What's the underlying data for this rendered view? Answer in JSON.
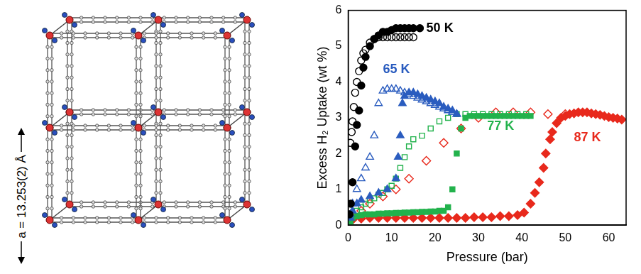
{
  "structure": {
    "label": "a = 13.253(2) Å"
  },
  "chart_data": {
    "type": "scatter",
    "x_label": "Pressure (bar)",
    "y_label": "Excess H₂ Uptake (wt %)",
    "xlim": [
      0,
      64
    ],
    "xticks": [
      0,
      10,
      20,
      30,
      40,
      50,
      60
    ],
    "ylim": [
      0,
      6
    ],
    "yticks": [
      0,
      1,
      2,
      3,
      4,
      5,
      6
    ],
    "grid": false,
    "series": [
      {
        "name": "50 K",
        "color": "#000000",
        "marker": "circle",
        "x": [
          0.3,
          0.6,
          1,
          1.6,
          2,
          2.5,
          3,
          3.5,
          4,
          5,
          6,
          7,
          8,
          9,
          10,
          11,
          12,
          13,
          14,
          15,
          16.5
        ],
        "values": [
          0.3,
          0.6,
          1.2,
          2.2,
          2.8,
          3.2,
          3.9,
          4.4,
          4.7,
          5.0,
          5.2,
          5.3,
          5.4,
          5.4,
          5.45,
          5.5,
          5.5,
          5.5,
          5.5,
          5.5,
          5.5
        ]
      },
      {
        "name": "50 K",
        "color": "#000000",
        "marker": "circle_open",
        "x": [
          0.5,
          0.8,
          1,
          1.3,
          1.6,
          2,
          2.5,
          3,
          3.5,
          4,
          5,
          6,
          7,
          8,
          9,
          10,
          11,
          12,
          13,
          14,
          15
        ],
        "values": [
          2.3,
          2.6,
          2.9,
          3.3,
          3.7,
          4.0,
          4.3,
          4.6,
          4.8,
          4.9,
          5.1,
          5.2,
          5.25,
          5.25,
          5.25,
          5.25,
          5.25,
          5.25,
          5.25,
          5.25,
          5.25
        ]
      },
      {
        "name": "65 K",
        "color": "#2a5cbf",
        "marker": "triangle",
        "x": [
          0.5,
          1,
          2,
          3,
          5,
          7,
          9,
          11,
          11.5,
          12,
          12.5,
          13,
          14,
          15,
          16,
          17,
          18,
          19,
          20,
          21,
          22,
          23,
          24,
          25
        ],
        "values": [
          0.2,
          0.4,
          0.6,
          0.7,
          0.8,
          0.9,
          1.0,
          1.3,
          1.9,
          2.5,
          3.4,
          3.6,
          3.7,
          3.7,
          3.65,
          3.6,
          3.55,
          3.5,
          3.45,
          3.4,
          3.3,
          3.25,
          3.2,
          3.1
        ]
      },
      {
        "name": "65 K",
        "color": "#2a5cbf",
        "marker": "triangle_open",
        "x": [
          0.5,
          1,
          2,
          3,
          4,
          5,
          6,
          7,
          8,
          9,
          10,
          11,
          12,
          13,
          14,
          15,
          16,
          17,
          18,
          19,
          20,
          21,
          22,
          23,
          24,
          25
        ],
        "values": [
          0.3,
          0.6,
          1.0,
          1.3,
          1.6,
          1.9,
          2.5,
          3.4,
          3.75,
          3.8,
          3.8,
          3.8,
          3.75,
          3.7,
          3.65,
          3.6,
          3.55,
          3.5,
          3.45,
          3.4,
          3.35,
          3.3,
          3.25,
          3.2,
          3.15,
          3.1
        ]
      },
      {
        "name": "77 K",
        "color": "#22b24c",
        "marker": "square",
        "x": [
          0.5,
          1,
          2,
          3,
          4,
          5,
          6,
          7,
          8,
          9,
          10,
          11,
          12,
          13,
          14,
          15,
          16,
          17,
          18,
          19,
          20,
          21,
          22,
          23,
          24,
          25,
          26,
          27,
          28,
          29,
          30,
          31,
          32,
          33,
          34,
          35,
          36,
          37,
          38,
          39,
          40,
          41,
          42
        ],
        "values": [
          0.1,
          0.2,
          0.25,
          0.28,
          0.3,
          0.3,
          0.3,
          0.32,
          0.32,
          0.33,
          0.33,
          0.34,
          0.34,
          0.35,
          0.35,
          0.36,
          0.36,
          0.37,
          0.37,
          0.38,
          0.38,
          0.4,
          0.4,
          0.5,
          1.0,
          2.0,
          2.7,
          3.0,
          3.05,
          3.05,
          3.05,
          3.05,
          3.05,
          3.05,
          3.05,
          3.05,
          3.05,
          3.05,
          3.05,
          3.05,
          3.05,
          3.05,
          3.05
        ]
      },
      {
        "name": "77 K",
        "color": "#22b24c",
        "marker": "square_open",
        "x": [
          0.5,
          1,
          2,
          3,
          4,
          5,
          6,
          7,
          8,
          9,
          10,
          11,
          12,
          13,
          14,
          15,
          17,
          19,
          21,
          23,
          25,
          27,
          29,
          31,
          33,
          35,
          37,
          39,
          41
        ],
        "values": [
          0.2,
          0.3,
          0.4,
          0.5,
          0.6,
          0.7,
          0.75,
          0.85,
          0.9,
          1.0,
          1.1,
          1.3,
          1.6,
          1.9,
          2.2,
          2.4,
          2.5,
          2.7,
          2.9,
          3.0,
          3.1,
          3.1,
          3.1,
          3.1,
          3.1,
          3.1,
          3.1,
          3.1,
          3.1
        ]
      },
      {
        "name": "87 K",
        "color": "#e8291c",
        "marker": "diamond",
        "x": [
          1,
          3,
          5,
          7,
          9,
          11,
          13,
          15,
          17,
          19,
          21,
          23,
          25,
          27,
          29,
          31,
          33,
          35,
          37,
          39,
          40.5,
          42,
          43,
          44,
          45,
          45.5,
          46.5,
          47,
          48,
          49,
          50,
          51,
          52,
          53,
          54,
          55,
          56,
          57,
          58,
          59,
          60,
          61,
          62,
          63
        ],
        "values": [
          0.15,
          0.18,
          0.2,
          0.2,
          0.2,
          0.2,
          0.2,
          0.2,
          0.2,
          0.2,
          0.2,
          0.2,
          0.2,
          0.2,
          0.22,
          0.22,
          0.22,
          0.25,
          0.25,
          0.28,
          0.35,
          0.6,
          0.9,
          1.2,
          1.6,
          2.0,
          2.4,
          2.6,
          2.85,
          3.0,
          3.05,
          3.1,
          3.12,
          3.15,
          3.15,
          3.15,
          3.12,
          3.1,
          3.08,
          3.05,
          3.02,
          3.0,
          2.98,
          2.95
        ]
      },
      {
        "name": "87 K",
        "color": "#e8291c",
        "marker": "diamond_open",
        "x": [
          1,
          3,
          5,
          8,
          11,
          14,
          18,
          22,
          26,
          30,
          34,
          38,
          42,
          46,
          50
        ],
        "values": [
          0.2,
          0.4,
          0.6,
          0.8,
          1.0,
          1.3,
          1.8,
          2.3,
          2.7,
          3.0,
          3.15,
          3.15,
          3.15,
          3.1,
          3.1
        ]
      }
    ],
    "annotations": [
      {
        "text": "50 K",
        "x": 18,
        "y": 5.5,
        "color": "#000000"
      },
      {
        "text": "65 K",
        "x": 8,
        "y": 4.35,
        "color": "#2a5cbf"
      },
      {
        "text": "77 K",
        "x": 32,
        "y": 2.75,
        "color": "#22b24c"
      },
      {
        "text": "87 K",
        "x": 52,
        "y": 2.45,
        "color": "#e8291c"
      }
    ]
  }
}
